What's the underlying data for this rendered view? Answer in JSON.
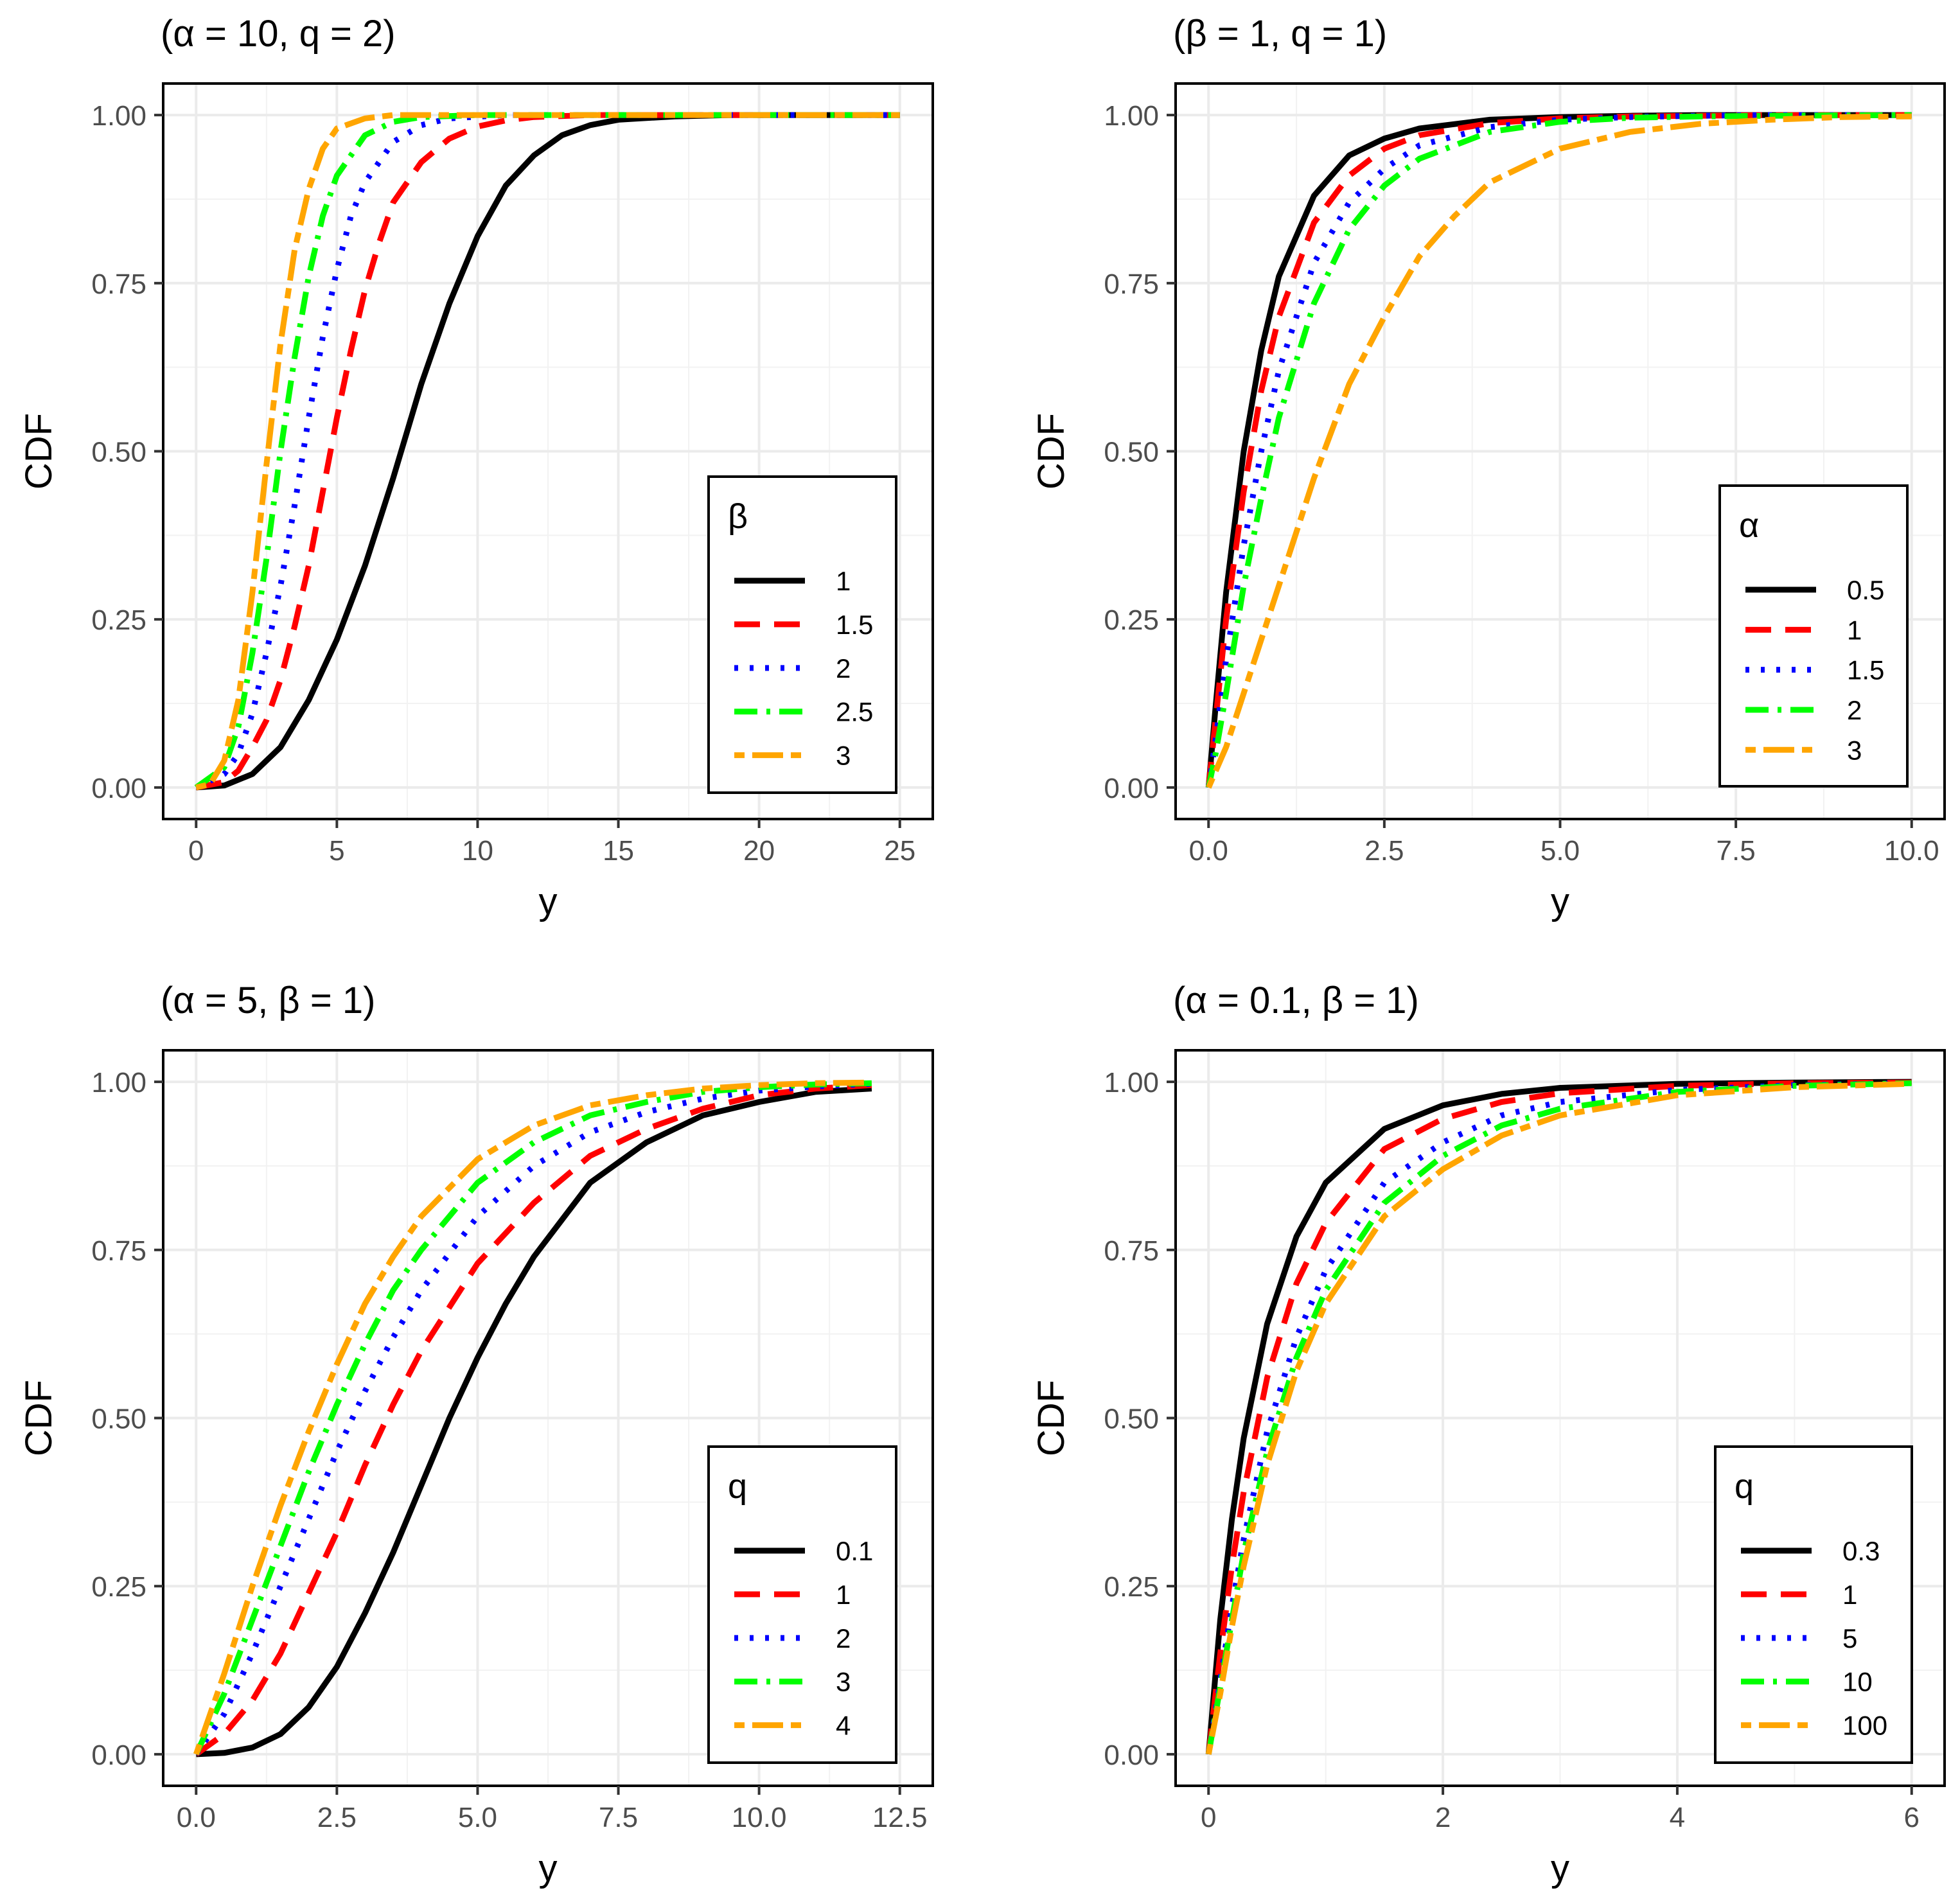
{
  "chart_data": [
    {
      "type": "line",
      "title": "(α = 10, q = 2)",
      "xlabel": "y",
      "ylabel": "CDF",
      "xlim": [
        0,
        25
      ],
      "ylim": [
        0,
        1
      ],
      "xticks": [
        0,
        5,
        10,
        15,
        20,
        25
      ],
      "xtick_labels": [
        "0",
        "5",
        "10",
        "15",
        "20",
        "25"
      ],
      "yticks": [
        0,
        0.25,
        0.5,
        0.75,
        1
      ],
      "ytick_labels": [
        "0.00",
        "0.25",
        "0.50",
        "0.75",
        "1.00"
      ],
      "grid": true,
      "legend": {
        "title": "β",
        "position": "bottom-right",
        "entries": [
          "1",
          "1.5",
          "2",
          "2.5",
          "3"
        ]
      },
      "series": [
        {
          "name": "1",
          "color": "#000000",
          "dash": "solid",
          "x": [
            0,
            1,
            2,
            3,
            4,
            5,
            6,
            7,
            8,
            9,
            10,
            11,
            12,
            13,
            14,
            15,
            17,
            19,
            21,
            25
          ],
          "y": [
            0,
            0.003,
            0.02,
            0.06,
            0.13,
            0.22,
            0.33,
            0.46,
            0.6,
            0.72,
            0.82,
            0.895,
            0.94,
            0.97,
            0.985,
            0.993,
            0.998,
            1,
            1,
            1
          ]
        },
        {
          "name": "1.5",
          "color": "#ff0000",
          "dash": "longdash",
          "x": [
            0,
            1,
            1.5,
            2,
            2.5,
            3,
            3.5,
            4,
            4.5,
            5,
            5.5,
            6,
            6.5,
            7,
            8,
            9,
            10,
            11,
            12,
            14,
            25
          ],
          "y": [
            0,
            0.008,
            0.025,
            0.06,
            0.1,
            0.16,
            0.24,
            0.33,
            0.44,
            0.55,
            0.65,
            0.74,
            0.81,
            0.87,
            0.93,
            0.965,
            0.983,
            0.992,
            0.997,
            1,
            1
          ]
        },
        {
          "name": "2",
          "color": "#0000ff",
          "dash": "dotted",
          "x": [
            0,
            1,
            1.5,
            2,
            2.5,
            3,
            3.5,
            4,
            4.5,
            5,
            5.5,
            6,
            7,
            8,
            9,
            11,
            25
          ],
          "y": [
            0,
            0.02,
            0.05,
            0.11,
            0.2,
            0.3,
            0.42,
            0.55,
            0.67,
            0.77,
            0.85,
            0.9,
            0.96,
            0.985,
            0.995,
            1,
            1
          ]
        },
        {
          "name": "2.5",
          "color": "#00ff00",
          "dash": "dotdash",
          "x": [
            0,
            1,
            1.5,
            2,
            2.5,
            3,
            3.5,
            4,
            4.5,
            5,
            6,
            7,
            8,
            10,
            25
          ],
          "y": [
            0,
            0.03,
            0.09,
            0.2,
            0.34,
            0.5,
            0.64,
            0.76,
            0.85,
            0.91,
            0.97,
            0.99,
            0.997,
            1,
            1
          ]
        },
        {
          "name": "3",
          "color": "#ffa500",
          "dash": "twodash",
          "x": [
            0,
            0.5,
            1,
            1.5,
            2,
            2.5,
            3,
            3.5,
            4,
            4.5,
            5,
            6,
            7,
            9,
            25
          ],
          "y": [
            0,
            0.005,
            0.04,
            0.13,
            0.29,
            0.48,
            0.66,
            0.8,
            0.89,
            0.95,
            0.98,
            0.995,
            1,
            1,
            1
          ]
        }
      ]
    },
    {
      "type": "line",
      "title": "(β = 1, q = 1)",
      "xlabel": "y",
      "ylabel": "CDF",
      "xlim": [
        0,
        10
      ],
      "ylim": [
        0,
        1
      ],
      "xticks": [
        0,
        2.5,
        5,
        7.5,
        10
      ],
      "xtick_labels": [
        "0.0",
        "2.5",
        "5.0",
        "7.5",
        "10.0"
      ],
      "yticks": [
        0,
        0.25,
        0.5,
        0.75,
        1
      ],
      "ytick_labels": [
        "0.00",
        "0.25",
        "0.50",
        "0.75",
        "1.00"
      ],
      "grid": true,
      "legend": {
        "title": "α",
        "position": "bottom-right",
        "entries": [
          "0.5",
          "1",
          "1.5",
          "2",
          "3"
        ]
      },
      "series": [
        {
          "name": "0.5",
          "color": "#000000",
          "dash": "solid",
          "x": [
            0,
            0.1,
            0.25,
            0.5,
            0.75,
            1,
            1.5,
            2,
            2.5,
            3,
            4,
            5,
            6,
            7,
            8,
            10
          ],
          "y": [
            0,
            0.12,
            0.29,
            0.5,
            0.65,
            0.76,
            0.88,
            0.94,
            0.965,
            0.98,
            0.993,
            0.997,
            0.999,
            1,
            1,
            1
          ]
        },
        {
          "name": "1",
          "color": "#ff0000",
          "dash": "longdash",
          "x": [
            0,
            0.1,
            0.25,
            0.5,
            0.75,
            1,
            1.5,
            2,
            2.5,
            3,
            4,
            5,
            6,
            7,
            8,
            10
          ],
          "y": [
            0,
            0.1,
            0.25,
            0.44,
            0.59,
            0.7,
            0.84,
            0.91,
            0.95,
            0.97,
            0.988,
            0.995,
            0.998,
            0.999,
            1,
            1
          ]
        },
        {
          "name": "1.5",
          "color": "#0000ff",
          "dash": "dotted",
          "x": [
            0,
            0.1,
            0.25,
            0.5,
            0.75,
            1,
            1.5,
            2,
            2.5,
            3,
            4,
            5,
            6,
            7,
            8,
            10
          ],
          "y": [
            0,
            0.07,
            0.19,
            0.36,
            0.5,
            0.62,
            0.78,
            0.87,
            0.92,
            0.955,
            0.982,
            0.993,
            0.997,
            0.999,
            1,
            1
          ]
        },
        {
          "name": "2",
          "color": "#00ff00",
          "dash": "dotdash",
          "x": [
            0,
            0.1,
            0.25,
            0.5,
            0.75,
            1,
            1.5,
            2,
            2.5,
            3,
            4,
            5,
            6,
            7,
            8,
            10
          ],
          "y": [
            0,
            0.05,
            0.14,
            0.3,
            0.43,
            0.55,
            0.72,
            0.83,
            0.895,
            0.935,
            0.975,
            0.99,
            0.996,
            0.998,
            0.999,
            1
          ]
        },
        {
          "name": "3",
          "color": "#ffa500",
          "dash": "twodash",
          "x": [
            0,
            0.25,
            0.5,
            1,
            1.5,
            2,
            2.5,
            3,
            3.5,
            4,
            5,
            6,
            7,
            8,
            9,
            10
          ],
          "y": [
            0,
            0.06,
            0.14,
            0.3,
            0.46,
            0.6,
            0.7,
            0.79,
            0.85,
            0.9,
            0.95,
            0.975,
            0.987,
            0.993,
            0.997,
            0.998
          ]
        }
      ]
    },
    {
      "type": "line",
      "title": "(α = 5, β = 1)",
      "xlabel": "y",
      "ylabel": "CDF",
      "xlim": [
        0,
        12.5
      ],
      "ylim": [
        0,
        1
      ],
      "xticks": [
        0,
        2.5,
        5,
        7.5,
        10,
        12.5
      ],
      "xtick_labels": [
        "0.0",
        "2.5",
        "5.0",
        "7.5",
        "10.0",
        "12.5"
      ],
      "yticks": [
        0,
        0.25,
        0.5,
        0.75,
        1
      ],
      "ytick_labels": [
        "0.00",
        "0.25",
        "0.50",
        "0.75",
        "1.00"
      ],
      "grid": true,
      "legend": {
        "title": "q",
        "position": "bottom-right",
        "entries": [
          "0.1",
          "1",
          "2",
          "3",
          "4"
        ]
      },
      "series": [
        {
          "name": "0.1",
          "color": "#000000",
          "dash": "solid",
          "x": [
            0,
            0.5,
            1,
            1.5,
            2,
            2.5,
            3,
            3.5,
            4,
            4.5,
            5,
            5.5,
            6,
            7,
            8,
            9,
            10,
            11,
            12
          ],
          "y": [
            0,
            0.002,
            0.01,
            0.03,
            0.07,
            0.13,
            0.21,
            0.3,
            0.4,
            0.5,
            0.59,
            0.67,
            0.74,
            0.85,
            0.91,
            0.95,
            0.97,
            0.985,
            0.99
          ]
        },
        {
          "name": "1",
          "color": "#ff0000",
          "dash": "longdash",
          "x": [
            0,
            0.5,
            1,
            1.5,
            2,
            2.5,
            3,
            3.5,
            4,
            5,
            6,
            7,
            8,
            9,
            10,
            11,
            12
          ],
          "y": [
            0,
            0.03,
            0.08,
            0.15,
            0.24,
            0.33,
            0.43,
            0.52,
            0.6,
            0.73,
            0.82,
            0.89,
            0.93,
            0.96,
            0.98,
            0.99,
            0.995
          ]
        },
        {
          "name": "2",
          "color": "#0000ff",
          "dash": "dotted",
          "x": [
            0,
            0.5,
            1,
            1.5,
            2,
            2.5,
            3,
            3.5,
            4,
            5,
            6,
            7,
            8,
            9,
            10,
            11,
            12
          ],
          "y": [
            0,
            0.06,
            0.15,
            0.25,
            0.35,
            0.45,
            0.54,
            0.62,
            0.69,
            0.8,
            0.875,
            0.925,
            0.955,
            0.975,
            0.987,
            0.993,
            0.997
          ]
        },
        {
          "name": "3",
          "color": "#00ff00",
          "dash": "dotdash",
          "x": [
            0,
            0.5,
            1,
            1.5,
            2,
            2.5,
            3,
            3.5,
            4,
            5,
            6,
            7,
            8,
            9,
            10,
            11,
            12
          ],
          "y": [
            0,
            0.09,
            0.2,
            0.31,
            0.42,
            0.52,
            0.61,
            0.69,
            0.75,
            0.85,
            0.91,
            0.95,
            0.97,
            0.985,
            0.992,
            0.996,
            0.998
          ]
        },
        {
          "name": "4",
          "color": "#ffa500",
          "dash": "twodash",
          "x": [
            0,
            0.5,
            1,
            1.5,
            2,
            2.5,
            3,
            3.5,
            4,
            5,
            6,
            7,
            8,
            9,
            10,
            11,
            12
          ],
          "y": [
            0,
            0.12,
            0.25,
            0.37,
            0.48,
            0.58,
            0.67,
            0.74,
            0.8,
            0.885,
            0.935,
            0.965,
            0.98,
            0.99,
            0.995,
            0.998,
            0.999
          ]
        }
      ]
    },
    {
      "type": "line",
      "title": "(α = 0.1, β = 1)",
      "xlabel": "y",
      "ylabel": "CDF",
      "xlim": [
        0,
        6
      ],
      "ylim": [
        0,
        1
      ],
      "xticks": [
        0,
        2,
        4,
        6
      ],
      "xtick_labels": [
        "0",
        "2",
        "4",
        "6"
      ],
      "yticks": [
        0,
        0.25,
        0.5,
        0.75,
        1
      ],
      "ytick_labels": [
        "0.00",
        "0.25",
        "0.50",
        "0.75",
        "1.00"
      ],
      "grid": true,
      "legend": {
        "title": "q",
        "position": "bottom-right",
        "entries": [
          "0.3",
          "1",
          "5",
          "10",
          "100"
        ]
      },
      "series": [
        {
          "name": "0.3",
          "color": "#000000",
          "dash": "solid",
          "x": [
            0,
            0.1,
            0.2,
            0.3,
            0.5,
            0.75,
            1,
            1.5,
            2,
            2.5,
            3,
            4,
            5,
            6
          ],
          "y": [
            0,
            0.2,
            0.35,
            0.47,
            0.64,
            0.77,
            0.85,
            0.93,
            0.965,
            0.982,
            0.991,
            0.997,
            0.999,
            1
          ]
        },
        {
          "name": "1",
          "color": "#ff0000",
          "dash": "longdash",
          "x": [
            0,
            0.1,
            0.2,
            0.3,
            0.5,
            0.75,
            1,
            1.5,
            2,
            2.5,
            3,
            4,
            5,
            6
          ],
          "y": [
            0,
            0.15,
            0.28,
            0.39,
            0.56,
            0.7,
            0.79,
            0.9,
            0.945,
            0.97,
            0.983,
            0.994,
            0.998,
            0.999
          ]
        },
        {
          "name": "5",
          "color": "#0000ff",
          "dash": "dotted",
          "x": [
            0,
            0.1,
            0.2,
            0.3,
            0.5,
            0.75,
            1,
            1.5,
            2,
            2.5,
            3,
            4,
            5,
            6
          ],
          "y": [
            0,
            0.11,
            0.22,
            0.32,
            0.48,
            0.62,
            0.72,
            0.85,
            0.91,
            0.95,
            0.97,
            0.988,
            0.995,
            0.998
          ]
        },
        {
          "name": "10",
          "color": "#00ff00",
          "dash": "dotdash",
          "x": [
            0,
            0.1,
            0.2,
            0.3,
            0.5,
            0.75,
            1,
            1.5,
            2,
            2.5,
            3,
            4,
            5,
            6
          ],
          "y": [
            0,
            0.1,
            0.2,
            0.3,
            0.45,
            0.59,
            0.69,
            0.82,
            0.89,
            0.935,
            0.96,
            0.985,
            0.994,
            0.998
          ]
        },
        {
          "name": "100",
          "color": "#ffa500",
          "dash": "twodash",
          "x": [
            0,
            0.1,
            0.2,
            0.3,
            0.5,
            0.75,
            1,
            1.5,
            2,
            2.5,
            3,
            4,
            5,
            6
          ],
          "y": [
            0,
            0.09,
            0.19,
            0.28,
            0.43,
            0.57,
            0.67,
            0.8,
            0.87,
            0.92,
            0.95,
            0.98,
            0.992,
            0.997
          ]
        }
      ]
    }
  ]
}
